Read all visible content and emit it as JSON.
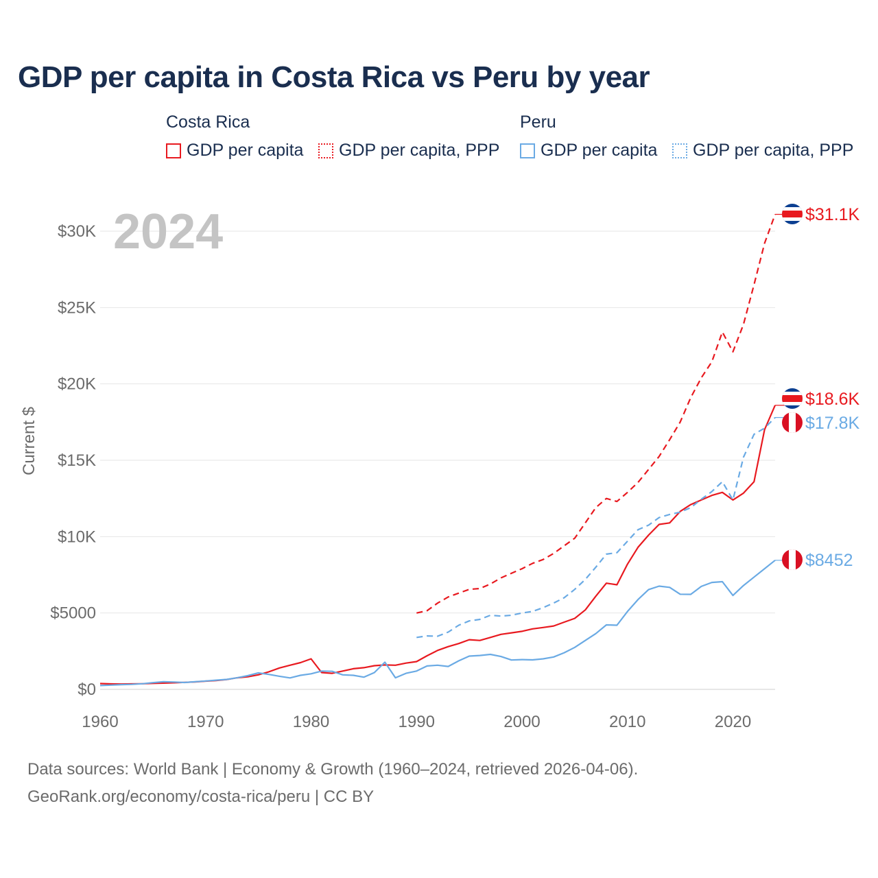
{
  "header": {
    "title": "GDP per capita in Costa Rica vs Peru by year"
  },
  "legend": {
    "groups": [
      {
        "country": "Costa Rica",
        "items": [
          "GDP per capita",
          "GDP per capita, PPP"
        ]
      },
      {
        "country": "Peru",
        "items": [
          "GDP per capita",
          "GDP per capita, PPP"
        ]
      }
    ]
  },
  "footer": {
    "line1": "Data sources: World Bank | Economy & Growth (1960–2024, retrieved 2026-04-06).",
    "line2": "GeoRank.org/economy/costa-rica/peru | CC BY"
  },
  "chart_data": {
    "type": "line",
    "title": "GDP per capita in Costa Rica vs Peru by year",
    "year_label": "2024",
    "xlabel": "",
    "ylabel": "Current $",
    "xlim": [
      1960,
      2024
    ],
    "ylim": [
      0,
      32000
    ],
    "x_ticks": [
      1960,
      1970,
      1980,
      1990,
      2000,
      2010,
      2020
    ],
    "x_tick_labels": [
      "1960",
      "1970",
      "1980",
      "1990",
      "2000",
      "2010",
      "2020"
    ],
    "y_ticks": [
      0,
      5000,
      10000,
      15000,
      20000,
      25000,
      30000
    ],
    "y_tick_labels": [
      "$0",
      "$5000",
      "$10K",
      "$15K",
      "$20K",
      "$25K",
      "$30K"
    ],
    "grid": true,
    "colors": {
      "costa_rica": "#e8191f",
      "peru": "#6aaae4"
    },
    "series": [
      {
        "name": "Costa Rica GDP per capita",
        "country": "Costa Rica",
        "style": "solid",
        "color": "#e8191f",
        "end_label": "$18.6K",
        "x": [
          1960,
          1961,
          1962,
          1963,
          1964,
          1965,
          1966,
          1967,
          1968,
          1969,
          1970,
          1971,
          1972,
          1973,
          1974,
          1975,
          1976,
          1977,
          1978,
          1979,
          1980,
          1981,
          1982,
          1983,
          1984,
          1985,
          1986,
          1987,
          1988,
          1989,
          1990,
          1991,
          1992,
          1993,
          1994,
          1995,
          1996,
          1997,
          1998,
          1999,
          2000,
          2001,
          2002,
          2003,
          2004,
          2005,
          2006,
          2007,
          2008,
          2009,
          2010,
          2011,
          2012,
          2013,
          2014,
          2015,
          2016,
          2017,
          2018,
          2019,
          2020,
          2021,
          2022,
          2023,
          2024
        ],
        "y": [
          380,
          360,
          350,
          360,
          370,
          390,
          410,
          430,
          460,
          490,
          540,
          580,
          640,
          760,
          820,
          950,
          1150,
          1400,
          1580,
          1750,
          2000,
          1100,
          1050,
          1200,
          1350,
          1420,
          1550,
          1600,
          1580,
          1720,
          1820,
          2200,
          2550,
          2800,
          3000,
          3250,
          3200,
          3400,
          3600,
          3700,
          3800,
          3960,
          4050,
          4150,
          4400,
          4650,
          5200,
          6100,
          6950,
          6850,
          8200,
          9300,
          10100,
          10800,
          10900,
          11650,
          12100,
          12400,
          12700,
          12900,
          12400,
          12850,
          13600,
          17000,
          18600
        ]
      },
      {
        "name": "Costa Rica GDP per capita, PPP",
        "country": "Costa Rica",
        "style": "dashed",
        "color": "#e8191f",
        "end_label": "$31.1K",
        "x": [
          1990,
          1991,
          1992,
          1993,
          1994,
          1995,
          1996,
          1997,
          1998,
          1999,
          2000,
          2001,
          2002,
          2003,
          2004,
          2005,
          2006,
          2007,
          2008,
          2009,
          2010,
          2011,
          2012,
          2013,
          2014,
          2015,
          2016,
          2017,
          2018,
          2019,
          2020,
          2021,
          2022,
          2023,
          2024
        ],
        "y": [
          5000,
          5150,
          5650,
          6050,
          6300,
          6550,
          6600,
          6900,
          7300,
          7600,
          7900,
          8250,
          8500,
          8900,
          9400,
          9900,
          10900,
          11900,
          12500,
          12300,
          12900,
          13550,
          14400,
          15250,
          16350,
          17500,
          19100,
          20400,
          21450,
          23400,
          22100,
          23900,
          26500,
          29200,
          31100
        ]
      },
      {
        "name": "Peru GDP per capita",
        "country": "Peru",
        "style": "solid",
        "color": "#6aaae4",
        "end_label": "$8452",
        "x": [
          1960,
          1961,
          1962,
          1963,
          1964,
          1965,
          1966,
          1967,
          1968,
          1969,
          1970,
          1971,
          1972,
          1973,
          1974,
          1975,
          1976,
          1977,
          1978,
          1979,
          1980,
          1981,
          1982,
          1983,
          1984,
          1985,
          1986,
          1987,
          1988,
          1989,
          1990,
          1991,
          1992,
          1993,
          1994,
          1995,
          1996,
          1997,
          1998,
          1999,
          2000,
          2001,
          2002,
          2003,
          2004,
          2005,
          2006,
          2007,
          2008,
          2009,
          2010,
          2011,
          2012,
          2013,
          2014,
          2015,
          2016,
          2017,
          2018,
          2019,
          2020,
          2021,
          2022,
          2023,
          2024
        ],
        "y": [
          250,
          280,
          310,
          330,
          370,
          440,
          500,
          480,
          450,
          500,
          550,
          600,
          650,
          760,
          900,
          1080,
          980,
          860,
          750,
          920,
          1020,
          1200,
          1180,
          950,
          920,
          800,
          1100,
          1780,
          760,
          1050,
          1200,
          1530,
          1580,
          1500,
          1870,
          2180,
          2220,
          2290,
          2150,
          1920,
          1950,
          1930,
          2000,
          2120,
          2400,
          2750,
          3200,
          3650,
          4220,
          4200,
          5100,
          5880,
          6530,
          6760,
          6680,
          6230,
          6220,
          6740,
          7000,
          7050,
          6150,
          6800,
          7350,
          7900,
          8452
        ]
      },
      {
        "name": "Peru GDP per capita, PPP",
        "country": "Peru",
        "style": "dashed",
        "color": "#6aaae4",
        "end_label": "$17.8K",
        "x": [
          1990,
          1991,
          1992,
          1993,
          1994,
          1995,
          1996,
          1997,
          1998,
          1999,
          2000,
          2001,
          2002,
          2003,
          2004,
          2005,
          2006,
          2007,
          2008,
          2009,
          2010,
          2011,
          2012,
          2013,
          2014,
          2015,
          2016,
          2017,
          2018,
          2019,
          2020,
          2021,
          2022,
          2023,
          2024
        ],
        "y": [
          3400,
          3500,
          3480,
          3750,
          4200,
          4480,
          4580,
          4850,
          4800,
          4850,
          5000,
          5100,
          5350,
          5650,
          6000,
          6550,
          7200,
          8000,
          8850,
          8950,
          9700,
          10450,
          10750,
          11250,
          11450,
          11600,
          11900,
          12450,
          12950,
          13600,
          12400,
          15200,
          16700,
          17100,
          17800
        ]
      }
    ]
  }
}
